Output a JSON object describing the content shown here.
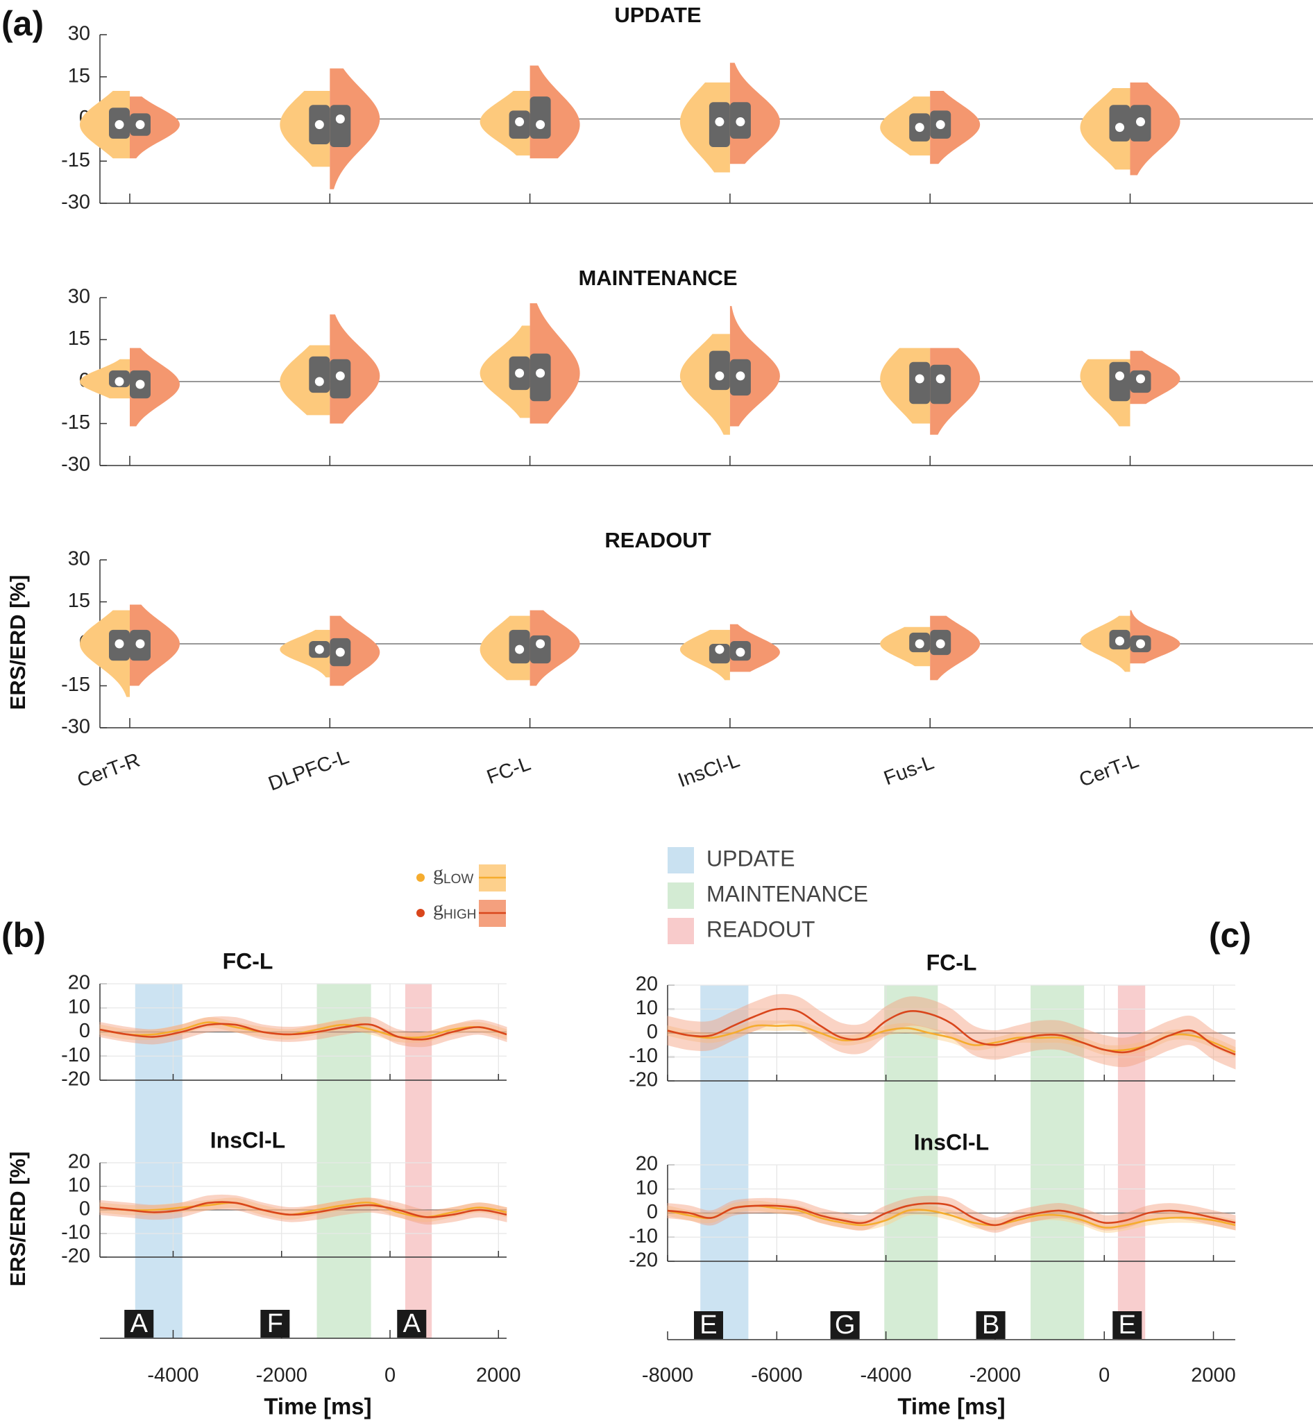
{
  "legend": {
    "groups": [
      {
        "name": "g",
        "subscript": "LOW",
        "line_color": "#f5ac2e",
        "band_color": "#fdd08c"
      },
      {
        "name": "g",
        "subscript": "HIGH",
        "line_color": "#d9461c",
        "band_color": "#f4a07e"
      }
    ],
    "phases": [
      {
        "name": "UPDATE",
        "color": "#c9e1f1"
      },
      {
        "name": "MAINTENANCE",
        "color": "#d3ebd3"
      },
      {
        "name": "READOUT",
        "color": "#f8cbcb"
      }
    ]
  },
  "chart_data": [
    {
      "type": "violin",
      "panel_label": "(a)",
      "ylabel": "ERS/ERD [%]",
      "categories": [
        "CerT-R",
        "DLPFC-L",
        "FC-L",
        "InsCl-L",
        "Fus-L",
        "CerT-L"
      ],
      "ylim": [
        -30,
        30
      ],
      "yticks": [
        30,
        15,
        0,
        -15,
        -30
      ],
      "subplots": [
        {
          "title": "UPDATE",
          "series": [
            {
              "color": "#fdc97c",
              "values": [
                -2,
                -2,
                -1,
                -1,
                -3,
                -3
              ],
              "q1": [
                -7,
                -9,
                -7,
                -10,
                -8,
                -8
              ],
              "q3": [
                4,
                5,
                3,
                6,
                2,
                5
              ],
              "min": [
                -14,
                -17,
                -13,
                -19,
                -13,
                -18
              ],
              "max": [
                10,
                10,
                10,
                13,
                8,
                11
              ]
            },
            {
              "color": "#f4976f",
              "values": [
                -2,
                0,
                -2,
                -1,
                -2,
                -1
              ],
              "q1": [
                -6,
                -10,
                -7,
                -7,
                -7,
                -8
              ],
              "q3": [
                2,
                5,
                8,
                6,
                3,
                5
              ],
              "min": [
                -14,
                -25,
                -14,
                -16,
                -16,
                -20
              ],
              "max": [
                8,
                18,
                19,
                20,
                10,
                13
              ]
            }
          ]
        },
        {
          "title": "MAINTENANCE",
          "series": [
            {
              "color": "#fdc97c",
              "values": [
                0,
                0,
                3,
                2,
                1,
                2
              ],
              "q1": [
                -2,
                -4,
                -3,
                -3,
                -8,
                -7
              ],
              "q3": [
                4,
                9,
                9,
                11,
                7,
                7
              ],
              "min": [
                -6,
                -12,
                -13,
                -19,
                -15,
                -16
              ],
              "max": [
                8,
                13,
                20,
                17,
                12,
                8
              ]
            },
            {
              "color": "#f4976f",
              "values": [
                -1,
                2,
                3,
                2,
                1,
                1
              ],
              "q1": [
                -6,
                -6,
                -7,
                -5,
                -8,
                -4
              ],
              "q3": [
                4,
                8,
                10,
                8,
                6,
                4
              ],
              "min": [
                -16,
                -15,
                -15,
                -16,
                -19,
                -8
              ],
              "max": [
                12,
                24,
                28,
                27,
                12,
                11
              ]
            }
          ]
        },
        {
          "title": "READOUT",
          "series": [
            {
              "color": "#fdc97c",
              "values": [
                0,
                -2,
                -2,
                -2,
                0,
                1
              ],
              "q1": [
                -6,
                -5,
                -7,
                -7,
                -3,
                -2
              ],
              "q3": [
                5,
                1,
                5,
                0,
                4,
                5
              ],
              "min": [
                -19,
                -12,
                -13,
                -13,
                -8,
                -10
              ],
              "max": [
                12,
                5,
                10,
                5,
                6,
                10
              ]
            },
            {
              "color": "#f4976f",
              "values": [
                0,
                -3,
                0,
                -3,
                0,
                0
              ],
              "q1": [
                -6,
                -8,
                -7,
                -6,
                -4,
                -3
              ],
              "q3": [
                5,
                2,
                3,
                1,
                5,
                3
              ],
              "min": [
                -15,
                -15,
                -15,
                -10,
                -13,
                -7
              ],
              "max": [
                14,
                10,
                12,
                7,
                10,
                12
              ]
            }
          ]
        }
      ]
    },
    {
      "type": "line",
      "panel_label": "(b)",
      "ylabel": "ERS/ERD [%]",
      "xlabel": "Time [ms]",
      "xlim": [
        -5350,
        2150
      ],
      "xticks": [
        -4000,
        -2000,
        0,
        2000
      ],
      "ylim": [
        -20,
        20
      ],
      "yticks": [
        20,
        10,
        0,
        -10,
        -20
      ],
      "x": [
        -5350,
        -4850,
        -4350,
        -3850,
        -3350,
        -2850,
        -2350,
        -1850,
        -1350,
        -850,
        -350,
        150,
        650,
        1150,
        1650,
        2150
      ],
      "regions": [
        {
          "start": -4700,
          "end": -3830,
          "color": "#c9e1f1"
        },
        {
          "start": -1350,
          "end": -350,
          "color": "#d3ebd3"
        },
        {
          "start": 280,
          "end": 770,
          "color": "#f8cbcb"
        }
      ],
      "markers": [
        {
          "label": "A",
          "x": -4630
        },
        {
          "label": "F",
          "x": -2120
        },
        {
          "label": "A",
          "x": 400
        }
      ],
      "subplots": [
        {
          "title": "FC-L",
          "series": [
            {
              "color": "#f5ac2e",
              "band_color": "#fdd08c",
              "error": 2,
              "values": [
                1,
                -1,
                -1,
                1,
                4,
                2,
                0,
                -1,
                1,
                3,
                1,
                -2,
                -2,
                1,
                2,
                -1
              ]
            },
            {
              "color": "#d9461c",
              "band_color": "#f4a07e",
              "error": 3,
              "values": [
                1,
                -1,
                -2,
                0,
                3,
                3,
                0,
                -1,
                0,
                2,
                3,
                -2,
                -3,
                0,
                2,
                -1
              ]
            }
          ]
        },
        {
          "title": "InsCl-L",
          "series": [
            {
              "color": "#f5ac2e",
              "band_color": "#fdd08c",
              "error": 2,
              "values": [
                1,
                0,
                0,
                1,
                2,
                3,
                0,
                -2,
                0,
                2,
                3,
                -1,
                -3,
                -1,
                1,
                -1
              ]
            },
            {
              "color": "#d9461c",
              "band_color": "#f4a07e",
              "error": 3,
              "values": [
                1,
                0,
                -1,
                0,
                3,
                3,
                0,
                -2,
                -1,
                1,
                2,
                0,
                -3,
                -2,
                0,
                -2
              ]
            }
          ]
        }
      ]
    },
    {
      "type": "line",
      "panel_label": "(c)",
      "xlabel": "Time [ms]",
      "xlim": [
        -8000,
        2400
      ],
      "xticks": [
        -8000,
        -6000,
        -4000,
        -2000,
        0,
        2000
      ],
      "ylim": [
        -20,
        20
      ],
      "yticks": [
        20,
        10,
        0,
        -10,
        -20
      ],
      "x": [
        -8000,
        -7600,
        -7200,
        -6800,
        -6400,
        -6000,
        -5600,
        -5200,
        -4800,
        -4400,
        -4000,
        -3600,
        -3200,
        -2800,
        -2400,
        -2000,
        -1600,
        -1200,
        -800,
        -400,
        0,
        400,
        800,
        1200,
        1600,
        2000,
        2400
      ],
      "regions": [
        {
          "start": -7400,
          "end": -6520,
          "color": "#c9e1f1"
        },
        {
          "start": -4030,
          "end": -3050,
          "color": "#d3ebd3"
        },
        {
          "start": -1350,
          "end": -370,
          "color": "#d3ebd3"
        },
        {
          "start": 250,
          "end": 750,
          "color": "#f8cbcb"
        }
      ],
      "markers": [
        {
          "label": "E",
          "x": -7250
        },
        {
          "label": "G",
          "x": -4750
        },
        {
          "label": "B",
          "x": -2080
        },
        {
          "label": "E",
          "x": 420
        }
      ],
      "subplots": [
        {
          "title": "FC-L",
          "series": [
            {
              "color": "#f5ac2e",
              "band_color": "#fdd08c",
              "error": 2,
              "values": [
                1,
                -1,
                -2,
                0,
                3,
                3,
                3,
                0,
                -3,
                -2,
                1,
                2,
                0,
                -2,
                -5,
                -4,
                -2,
                -2,
                -2,
                -4,
                -7,
                -7,
                -5,
                -1,
                -1,
                -4,
                -8
              ]
            },
            {
              "color": "#d9461c",
              "band_color": "#f4a07e",
              "error": 6,
              "values": [
                1,
                -1,
                -1,
                3,
                7,
                10,
                9,
                3,
                -2,
                -2,
                5,
                9,
                8,
                4,
                -3,
                -5,
                -3,
                -1,
                -1,
                -4,
                -7,
                -8,
                -5,
                -1,
                1,
                -5,
                -9
              ]
            }
          ]
        },
        {
          "title": "InsCl-L",
          "series": [
            {
              "color": "#f5ac2e",
              "band_color": "#fdd08c",
              "error": 2,
              "values": [
                1,
                -1,
                -2,
                2,
                3,
                2,
                1,
                -2,
                -4,
                -5,
                -3,
                1,
                1,
                -1,
                -4,
                -5,
                -3,
                -1,
                -1,
                -3,
                -6,
                -5,
                -3,
                -2,
                -2,
                -3,
                -5
              ]
            },
            {
              "color": "#d9461c",
              "band_color": "#f4a07e",
              "error": 3,
              "values": [
                1,
                0,
                -2,
                2,
                3,
                3,
                2,
                -1,
                -3,
                -4,
                0,
                3,
                4,
                3,
                -2,
                -5,
                -2,
                0,
                1,
                -1,
                -4,
                -3,
                0,
                1,
                0,
                -2,
                -4
              ]
            }
          ]
        }
      ]
    }
  ]
}
